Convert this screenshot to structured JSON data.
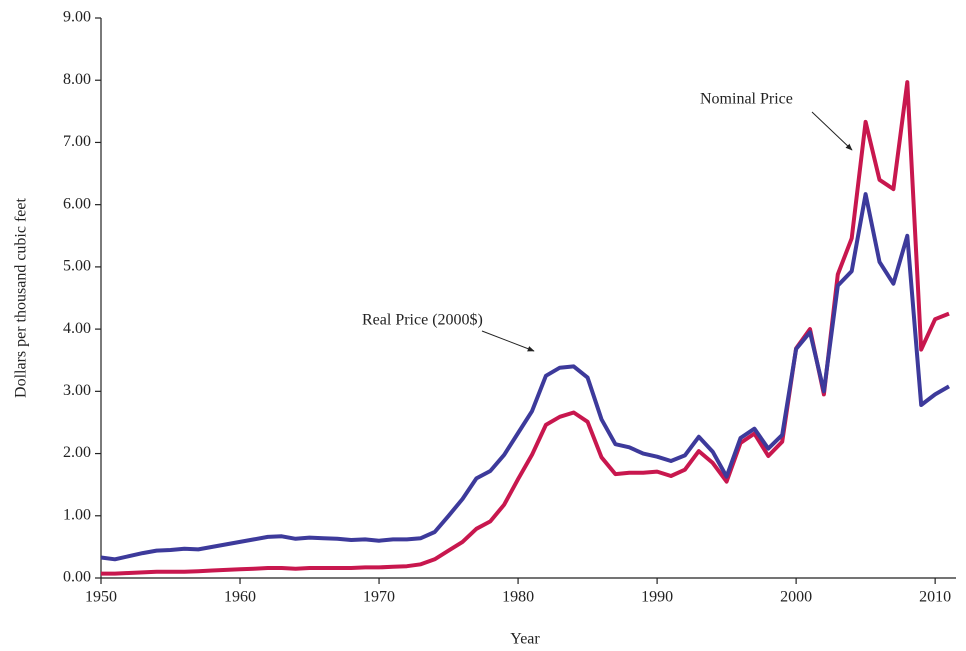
{
  "chart_data": {
    "type": "line",
    "x_label": "Year",
    "y_label": "Dollars per thousand cubic feet",
    "x": [
      1950,
      1951,
      1952,
      1953,
      1954,
      1955,
      1956,
      1957,
      1958,
      1959,
      1960,
      1961,
      1962,
      1963,
      1964,
      1965,
      1966,
      1967,
      1968,
      1969,
      1970,
      1971,
      1972,
      1973,
      1974,
      1975,
      1976,
      1977,
      1978,
      1979,
      1980,
      1981,
      1982,
      1983,
      1984,
      1985,
      1986,
      1987,
      1988,
      1989,
      1990,
      1991,
      1992,
      1993,
      1994,
      1995,
      1996,
      1997,
      1998,
      1999,
      2000,
      2001,
      2002,
      2003,
      2004,
      2005,
      2006,
      2007,
      2008,
      2009,
      2010,
      2011
    ],
    "series": [
      {
        "name": "Real Price (2000$)",
        "color": "#3d3a9b",
        "values": [
          0.33,
          0.3,
          0.35,
          0.4,
          0.44,
          0.45,
          0.47,
          0.46,
          0.5,
          0.54,
          0.58,
          0.62,
          0.66,
          0.67,
          0.63,
          0.65,
          0.64,
          0.63,
          0.61,
          0.62,
          0.6,
          0.62,
          0.62,
          0.64,
          0.74,
          1.0,
          1.27,
          1.6,
          1.72,
          1.98,
          2.33,
          2.68,
          3.25,
          3.38,
          3.4,
          3.22,
          2.55,
          2.15,
          2.1,
          2.0,
          1.95,
          1.88,
          1.97,
          2.27,
          2.03,
          1.63,
          2.25,
          2.4,
          2.08,
          2.3,
          3.68,
          3.95,
          3.0,
          4.7,
          4.93,
          6.17,
          5.08,
          4.73,
          5.5,
          2.78,
          2.95,
          3.08
        ]
      },
      {
        "name": "Nominal Price",
        "color": "#c8174e",
        "values": [
          0.07,
          0.07,
          0.08,
          0.09,
          0.1,
          0.1,
          0.1,
          0.11,
          0.12,
          0.13,
          0.14,
          0.15,
          0.16,
          0.16,
          0.15,
          0.16,
          0.16,
          0.16,
          0.16,
          0.17,
          0.17,
          0.18,
          0.19,
          0.22,
          0.3,
          0.44,
          0.58,
          0.79,
          0.91,
          1.18,
          1.59,
          1.98,
          2.46,
          2.59,
          2.66,
          2.51,
          1.94,
          1.67,
          1.69,
          1.69,
          1.71,
          1.64,
          1.74,
          2.04,
          1.85,
          1.55,
          2.17,
          2.32,
          1.96,
          2.19,
          3.69,
          4.0,
          2.95,
          4.88,
          5.46,
          7.33,
          6.4,
          6.25,
          7.97,
          3.67,
          4.16,
          4.25
        ]
      }
    ],
    "xlim": [
      1950,
      2011.5
    ],
    "xticks": [
      1950,
      1960,
      1970,
      1980,
      1990,
      2000,
      2010
    ],
    "ylim": [
      0,
      9
    ],
    "yticks": [
      {
        "value": 0,
        "label": "0.00"
      },
      {
        "value": 1,
        "label": "1.00"
      },
      {
        "value": 2,
        "label": "2.00"
      },
      {
        "value": 3,
        "label": "3.00"
      },
      {
        "value": 4,
        "label": "4.00"
      },
      {
        "value": 5,
        "label": "5.00"
      },
      {
        "value": 6,
        "label": "6.00"
      },
      {
        "value": 7,
        "label": "7.00"
      },
      {
        "value": 8,
        "label": "8.00"
      },
      {
        "value": 9,
        "label": "9.00"
      }
    ],
    "grid": false
  }
}
